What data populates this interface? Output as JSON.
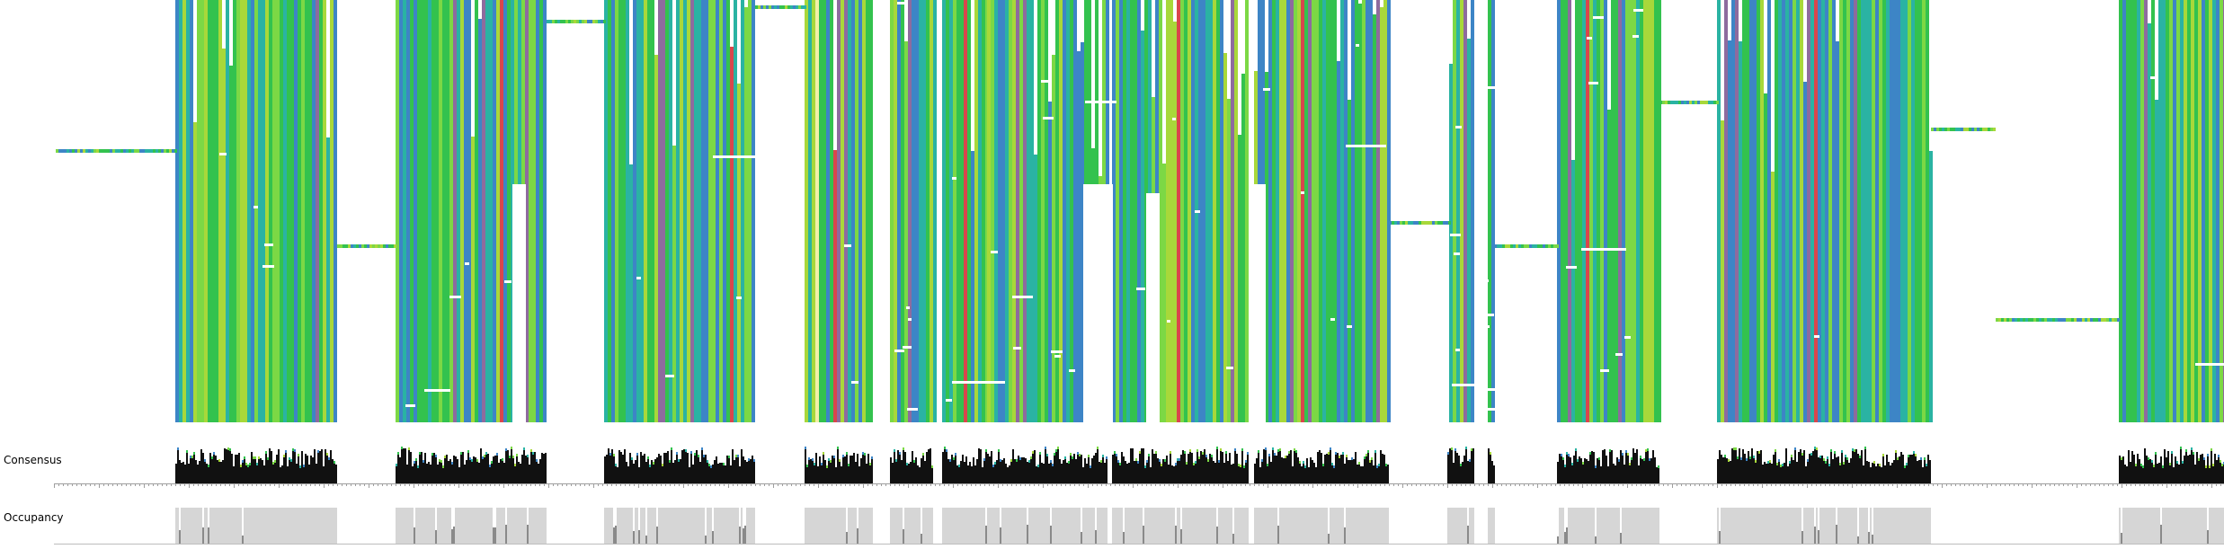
{
  "tracks": {
    "consensus_label": "Consensus",
    "occupancy_label": "Occupancy"
  },
  "colors": {
    "blue": "#3d85c6",
    "green_light": "#7cd845",
    "green": "#33c24e",
    "teal": "#2ab3a3",
    "yellow_green": "#a8d83a",
    "purple": "#8e6b9e",
    "red": "#d9464c",
    "pale_yellow": "#f3f0a8",
    "white": "#ffffff",
    "consensus_bar": "#111111",
    "occupancy_full": "#d6d6d6",
    "occupancy_partial": "#8a8a8a"
  },
  "alignment": {
    "block_ranges": [
      [
        195,
        375
      ],
      [
        440,
        608
      ],
      [
        672,
        840
      ],
      [
        895,
        970
      ],
      [
        990,
        1038
      ],
      [
        1048,
        1095
      ],
      [
        1098,
        1232
      ],
      [
        1237,
        1388
      ],
      [
        1395,
        1545
      ],
      [
        1550,
        1732
      ],
      [
        1610,
        1645
      ],
      [
        1610,
        1645
      ],
      [
        1732,
        1822
      ],
      [
        1612,
        1640
      ],
      [
        1612,
        1640
      ],
      [
        1612,
        1640
      ],
      [
        1612,
        1640
      ],
      [
        1612,
        1640
      ],
      [
        1612,
        1640
      ]
    ],
    "column_pattern": [
      "blue",
      "green_light",
      "green",
      "teal",
      "yellow_green",
      "green",
      "blue",
      "green_light",
      "teal",
      "green",
      "yellow_green",
      "purple",
      "green",
      "blue",
      "green_light"
    ]
  }
}
